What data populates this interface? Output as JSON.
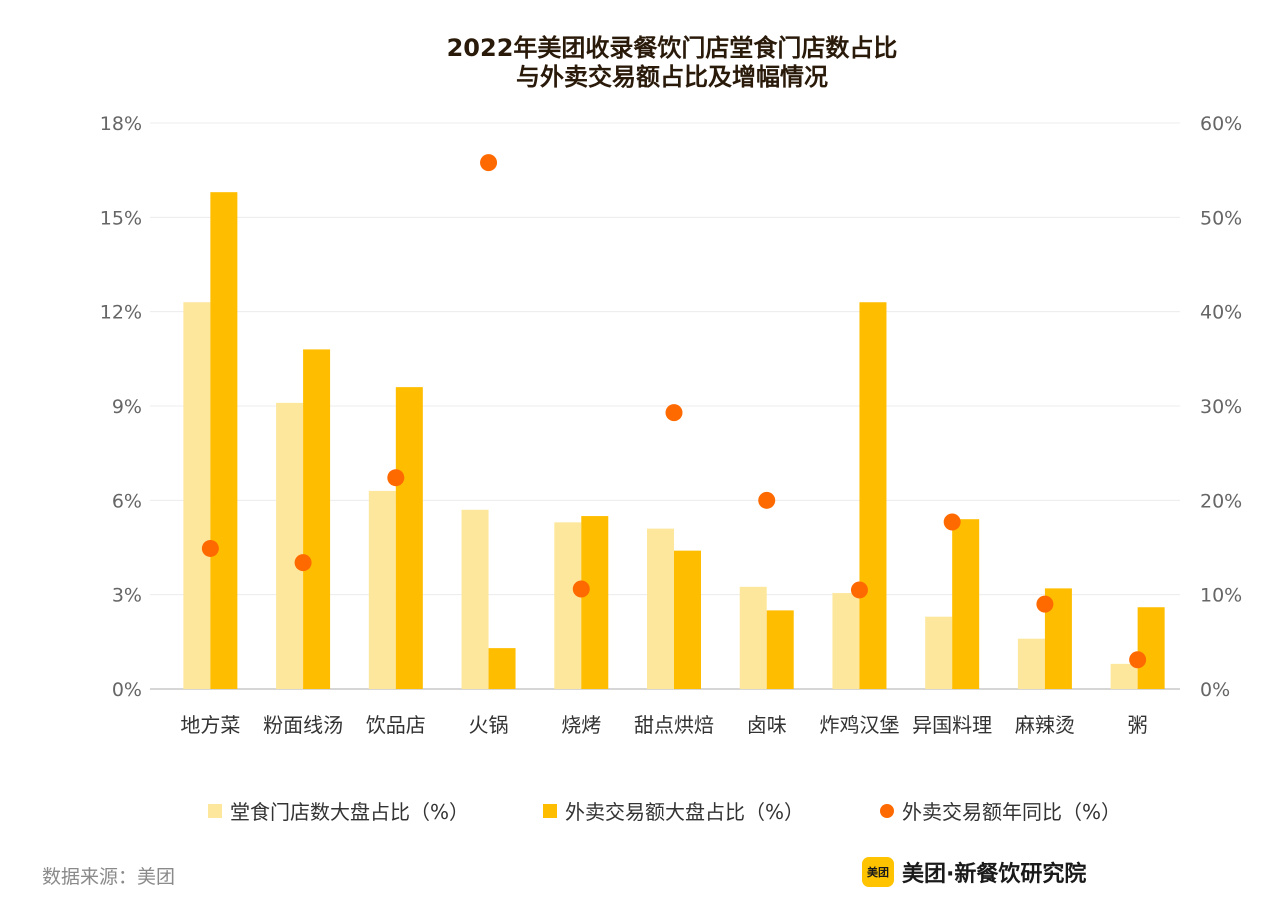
{
  "chart_data": {
    "type": "bar",
    "title": "2022年美团收录餐饮门店堂食门店数占比",
    "subtitle": "与外卖交易额占比及增幅情况",
    "categories": [
      "地方菜",
      "粉面线汤",
      "饮品店",
      "火锅",
      "烧烤",
      "甜点烘焙",
      "卤味",
      "炸鸡汉堡",
      "异国料理",
      "麻辣烫",
      "粥"
    ],
    "series": [
      {
        "name": "堂食门店数大盘占比（%）",
        "axis": "left",
        "kind": "bar",
        "color": "#fde79c",
        "values": [
          12.3,
          9.1,
          6.3,
          5.7,
          5.3,
          5.1,
          3.25,
          3.05,
          2.3,
          1.6,
          0.8
        ]
      },
      {
        "name": "外卖交易额大盘占比（%）",
        "axis": "left",
        "kind": "bar",
        "color": "#ffbd00",
        "values": [
          15.8,
          10.8,
          9.6,
          1.3,
          5.5,
          4.4,
          2.5,
          12.3,
          5.4,
          3.2,
          2.6
        ]
      },
      {
        "name": "外卖交易额年同比（%）",
        "axis": "right",
        "kind": "scatter",
        "color": "#ff6a00",
        "values": [
          14.9,
          13.4,
          22.4,
          55.8,
          10.6,
          29.3,
          20.0,
          10.5,
          17.7,
          9.0,
          3.1
        ]
      }
    ],
    "ylim_left": [
      0,
      18
    ],
    "ylim_right": [
      0,
      60
    ],
    "yticks_left": [
      "0%",
      "3%",
      "6%",
      "9%",
      "12%",
      "15%",
      "18%"
    ],
    "yticks_right": [
      "0%",
      "10%",
      "20%",
      "30%",
      "40%",
      "50%",
      "60%"
    ],
    "grid": true,
    "legend_position": "bottom"
  },
  "footer": {
    "source": "数据来源：美团",
    "brand_logo_text": "美团",
    "brand_name": "美团·新餐饮研究院"
  }
}
